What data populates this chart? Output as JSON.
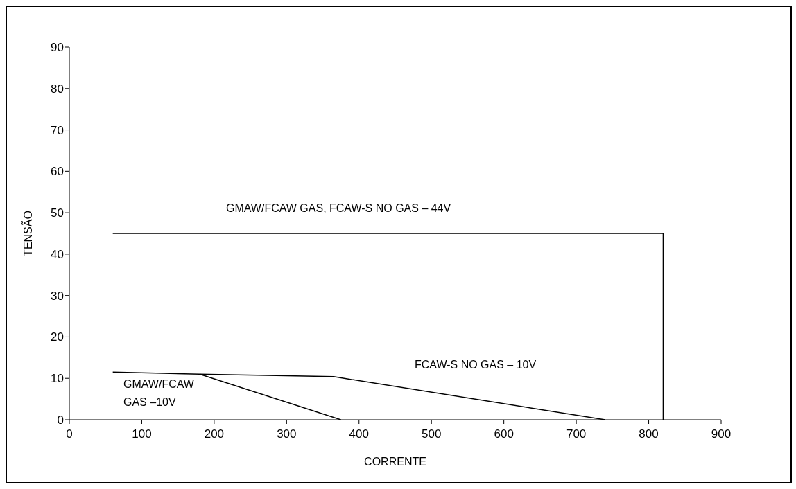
{
  "chart_data": {
    "type": "line",
    "xlabel": "CORRENTE",
    "ylabel": "TENSÃO",
    "xlim": [
      0,
      900
    ],
    "xticks": [
      0,
      100,
      200,
      300,
      400,
      500,
      600,
      700,
      800,
      900
    ],
    "ylim": [
      0,
      90
    ],
    "yticks": [
      0,
      10,
      20,
      30,
      40,
      50,
      60,
      70,
      80,
      90
    ],
    "grid": false,
    "marker": "none",
    "line_style": "solid",
    "series": [
      {
        "color": "#000000",
        "x": [
          60,
          820,
          820
        ],
        "values": [
          45,
          45,
          0
        ]
      },
      {
        "color": "#000000",
        "x": [
          60,
          180,
          375
        ],
        "values": [
          11.5,
          11,
          0
        ]
      },
      {
        "color": "#000000",
        "x": [
          180,
          365,
          740
        ],
        "values": [
          11,
          10.4,
          0
        ]
      }
    ],
    "annotations": [
      "GMAW/FCAW GAS, FCAW-S NO GAS – 44V",
      "FCAW-S NO GAS – 10V",
      "GMAW/FCAW GAS –10V"
    ]
  }
}
